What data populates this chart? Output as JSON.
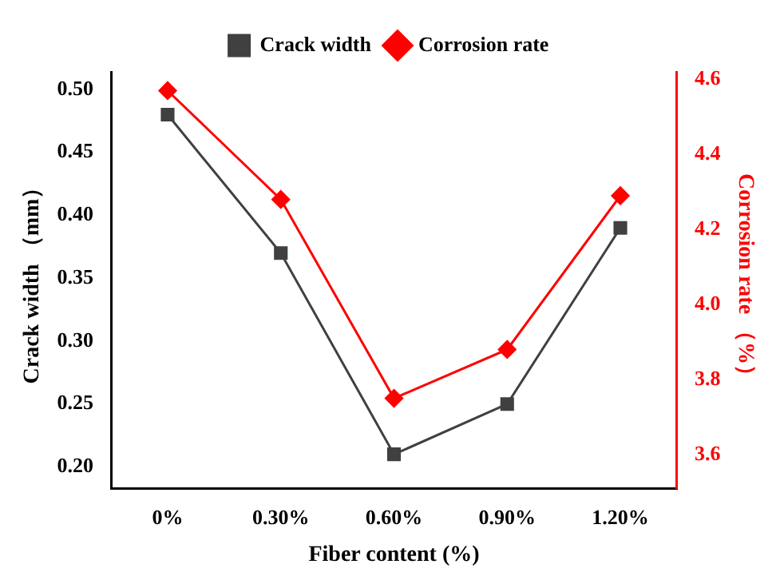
{
  "chart_data": {
    "type": "line",
    "xlabel": "Fiber content (%)",
    "ylabel": "Crack width （mm）",
    "y2label": "Corrosion rate （%）",
    "categories": [
      "0%",
      "0.30%",
      "0.60%",
      "0.90%",
      "1.20%"
    ],
    "series": [
      {
        "name": "Crack width",
        "color": "#404040",
        "values": [
          0.48,
          0.37,
          0.21,
          0.25,
          0.39
        ],
        "marker": "square"
      },
      {
        "name": "Corrosion rate",
        "color": "#ff0000",
        "values": [
          4.57,
          4.28,
          3.75,
          3.88,
          4.29
        ],
        "marker": "diamond",
        "axis": "y2"
      }
    ],
    "ylim": [
      0.183,
      0.514
    ],
    "yticks": [
      {
        "value": 0.2,
        "label": "0.20"
      },
      0.25,
      {
        "value": 0.3,
        "label": "0.30"
      },
      0.35,
      {
        "value": 0.4,
        "label": "0.40"
      },
      0.45,
      {
        "value": 0.5,
        "label": "0.50"
      }
    ],
    "y2lim": [
      3.51,
      4.62
    ],
    "y2ticks": [
      3.6,
      3.8,
      {
        "value": 4,
        "label": "4.0"
      },
      4.2,
      4.4,
      4.6
    ],
    "legend": "top",
    "grid": false
  }
}
